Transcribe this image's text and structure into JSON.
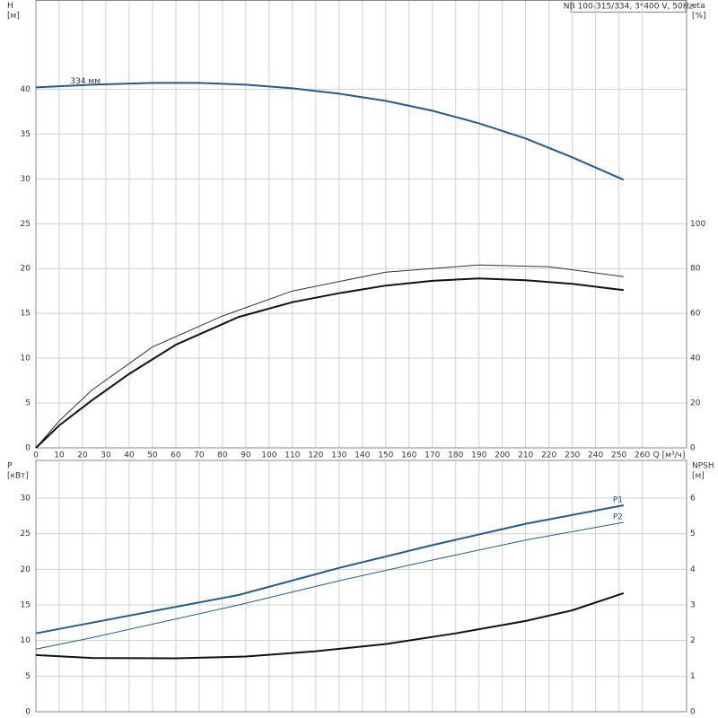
{
  "chart_data": [
    {
      "type": "line",
      "header": "NB 100-315/334, 3*400 V, 50Hz",
      "xlabel": "Q [м³/ч]",
      "ylabel": [
        "H",
        "[м]"
      ],
      "y2label": [
        "eta",
        "[%]"
      ],
      "xlim": [
        0,
        279
      ],
      "xticks": [
        0,
        10,
        20,
        30,
        40,
        50,
        60,
        70,
        80,
        90,
        100,
        110,
        120,
        130,
        140,
        150,
        160,
        170,
        180,
        190,
        200,
        210,
        220,
        230,
        240,
        250,
        260
      ],
      "ylim": [
        0,
        49.9
      ],
      "yticks": [
        0,
        5,
        10,
        15,
        20,
        25,
        30,
        35,
        40
      ],
      "y2lim": [
        0,
        199.6
      ],
      "y2ticks": [
        0,
        20,
        40,
        60,
        80,
        100
      ],
      "grid": true,
      "series": [
        {
          "name": "334 мм",
          "color": "#1f5b9b",
          "linewidth": 2,
          "x": [
            0,
            24,
            50,
            70,
            90,
            110,
            130,
            150,
            170,
            190,
            210,
            230,
            252
          ],
          "values": [
            40.2,
            40.5,
            40.7,
            40.7,
            40.5,
            40.1,
            39.5,
            38.7,
            37.6,
            36.2,
            34.5,
            32.4,
            29.9
          ]
        },
        {
          "color": "#333333",
          "linewidth": 1,
          "axis": "y2",
          "x": [
            0,
            10,
            24,
            50,
            80,
            110,
            150,
            190,
            220,
            252
          ],
          "values": [
            0,
            12,
            25.8,
            45,
            58.8,
            70,
            78.4,
            81.6,
            80.8,
            76.4
          ]
        },
        {
          "color": "#111111",
          "linewidth": 2,
          "axis": "y2",
          "x": [
            0,
            10,
            24,
            40,
            60,
            87,
            110,
            130,
            150,
            170,
            190,
            210,
            230,
            252
          ],
          "values": [
            0,
            10,
            21.2,
            33,
            46,
            58.4,
            65,
            69,
            72.4,
            74.5,
            75.6,
            74.8,
            73.2,
            70.4
          ]
        }
      ]
    },
    {
      "type": "line",
      "ylabel": [
        "P",
        "[кВт]"
      ],
      "y2label": [
        "NPSH",
        "[м]"
      ],
      "xlim": [
        0,
        279
      ],
      "ylim": [
        0,
        35.3
      ],
      "yticks": [
        0,
        5,
        10,
        15,
        20,
        25,
        30
      ],
      "y2lim": [
        0,
        7.06
      ],
      "y2ticks": [
        0,
        1,
        2,
        3,
        4,
        5,
        6
      ],
      "grid": true,
      "series": [
        {
          "name": "P1",
          "color": "#1f5b9b",
          "linewidth": 2,
          "x": [
            0,
            24,
            87,
            130,
            170,
            210,
            252
          ],
          "values": [
            11.0,
            12.5,
            16.4,
            20.2,
            23.4,
            26.4,
            29.0
          ]
        },
        {
          "name": "P2",
          "color": "#1f5b9b",
          "linewidth": 1,
          "x": [
            0,
            24,
            87,
            130,
            170,
            210,
            252
          ],
          "values": [
            8.8,
            10.4,
            15.0,
            18.4,
            21.3,
            24.1,
            26.6
          ]
        },
        {
          "color": "#111111",
          "linewidth": 2,
          "axis": "y2",
          "x": [
            0,
            24,
            60,
            90,
            120,
            150,
            180,
            210,
            230,
            252
          ],
          "values": [
            1.59,
            1.51,
            1.5,
            1.55,
            1.7,
            1.9,
            2.2,
            2.55,
            2.85,
            3.33
          ]
        }
      ]
    }
  ]
}
